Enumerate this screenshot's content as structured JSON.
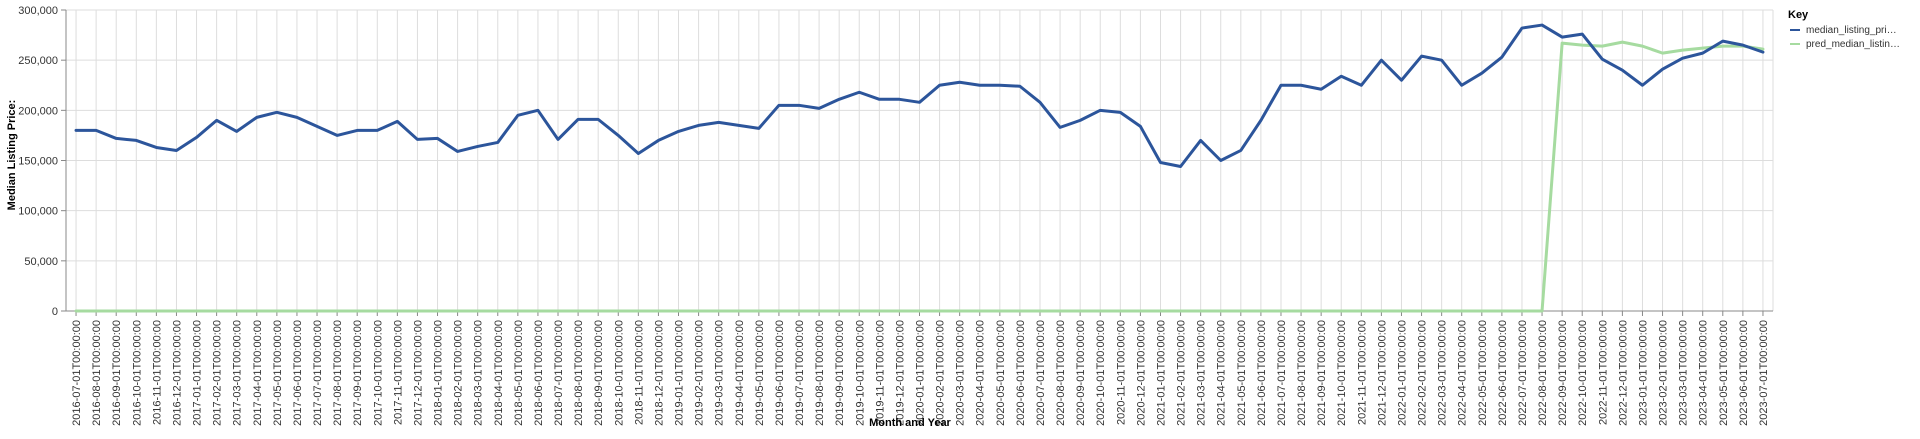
{
  "chart_data": {
    "type": "line",
    "xlabel": "Month and Year",
    "ylabel": "Median Listing Price:",
    "ylim": [
      0,
      300000
    ],
    "yticks": [
      "0",
      "50,000",
      "100,000",
      "150,000",
      "200,000",
      "250,000",
      "300,000"
    ],
    "grid": true,
    "legend": {
      "title": "Key",
      "placement": "top-right"
    },
    "x": [
      "2016-07-01T00:00:00",
      "2016-08-01T00:00:00",
      "2016-09-01T00:00:00",
      "2016-10-01T00:00:00",
      "2016-11-01T00:00:00",
      "2016-12-01T00:00:00",
      "2017-01-01T00:00:00",
      "2017-02-01T00:00:00",
      "2017-03-01T00:00:00",
      "2017-04-01T00:00:00",
      "2017-05-01T00:00:00",
      "2017-06-01T00:00:00",
      "2017-07-01T00:00:00",
      "2017-08-01T00:00:00",
      "2017-09-01T00:00:00",
      "2017-10-01T00:00:00",
      "2017-11-01T00:00:00",
      "2017-12-01T00:00:00",
      "2018-01-01T00:00:00",
      "2018-02-01T00:00:00",
      "2018-03-01T00:00:00",
      "2018-04-01T00:00:00",
      "2018-05-01T00:00:00",
      "2018-06-01T00:00:00",
      "2018-07-01T00:00:00",
      "2018-08-01T00:00:00",
      "2018-09-01T00:00:00",
      "2018-10-01T00:00:00",
      "2018-11-01T00:00:00",
      "2018-12-01T00:00:00",
      "2019-01-01T00:00:00",
      "2019-02-01T00:00:00",
      "2019-03-01T00:00:00",
      "2019-04-01T00:00:00",
      "2019-05-01T00:00:00",
      "2019-06-01T00:00:00",
      "2019-07-01T00:00:00",
      "2019-08-01T00:00:00",
      "2019-09-01T00:00:00",
      "2019-10-01T00:00:00",
      "2019-11-01T00:00:00",
      "2019-12-01T00:00:00",
      "2020-01-01T00:00:00",
      "2020-02-01T00:00:00",
      "2020-03-01T00:00:00",
      "2020-04-01T00:00:00",
      "2020-05-01T00:00:00",
      "2020-06-01T00:00:00",
      "2020-07-01T00:00:00",
      "2020-08-01T00:00:00",
      "2020-09-01T00:00:00",
      "2020-10-01T00:00:00",
      "2020-11-01T00:00:00",
      "2020-12-01T00:00:00",
      "2021-01-01T00:00:00",
      "2021-02-01T00:00:00",
      "2021-03-01T00:00:00",
      "2021-04-01T00:00:00",
      "2021-05-01T00:00:00",
      "2021-06-01T00:00:00",
      "2021-07-01T00:00:00",
      "2021-08-01T00:00:00",
      "2021-09-01T00:00:00",
      "2021-10-01T00:00:00",
      "2021-11-01T00:00:00",
      "2021-12-01T00:00:00",
      "2022-01-01T00:00:00",
      "2022-02-01T00:00:00",
      "2022-03-01T00:00:00",
      "2022-04-01T00:00:00",
      "2022-05-01T00:00:00",
      "2022-06-01T00:00:00",
      "2022-07-01T00:00:00",
      "2022-08-01T00:00:00",
      "2022-09-01T00:00:00",
      "2022-10-01T00:00:00",
      "2022-11-01T00:00:00",
      "2022-12-01T00:00:00",
      "2023-01-01T00:00:00",
      "2023-02-01T00:00:00",
      "2023-03-01T00:00:00",
      "2023-04-01T00:00:00",
      "2023-05-01T00:00:00",
      "2023-06-01T00:00:00",
      "2023-07-01T00:00:00"
    ],
    "series": [
      {
        "name": "median_listing_pri…",
        "color": "#2c559b",
        "values": [
          180000,
          180000,
          172000,
          170000,
          163000,
          160000,
          173000,
          190000,
          179000,
          193000,
          198000,
          193000,
          184000,
          175000,
          180000,
          180000,
          189000,
          171000,
          172000,
          159000,
          164000,
          168000,
          195000,
          200000,
          171000,
          191000,
          191000,
          175000,
          157000,
          170000,
          179000,
          185000,
          188000,
          185000,
          182000,
          205000,
          205000,
          202000,
          211000,
          218000,
          211000,
          211000,
          208000,
          225000,
          228000,
          225000,
          225000,
          224000,
          208000,
          183000,
          190000,
          200000,
          198000,
          184000,
          148000,
          144000,
          170000,
          150000,
          160000,
          190000,
          225000,
          225000,
          221000,
          234000,
          225000,
          250000,
          230000,
          254000,
          250000,
          225000,
          237000,
          253000,
          282000,
          285000,
          273000,
          276000,
          251000,
          240000,
          225000,
          241000,
          252000,
          257000,
          269000,
          265000,
          258000
        ]
      },
      {
        "name": "pred_median_listin…",
        "color": "#a6dba0",
        "values": [
          0,
          0,
          0,
          0,
          0,
          0,
          0,
          0,
          0,
          0,
          0,
          0,
          0,
          0,
          0,
          0,
          0,
          0,
          0,
          0,
          0,
          0,
          0,
          0,
          0,
          0,
          0,
          0,
          0,
          0,
          0,
          0,
          0,
          0,
          0,
          0,
          0,
          0,
          0,
          0,
          0,
          0,
          0,
          0,
          0,
          0,
          0,
          0,
          0,
          0,
          0,
          0,
          0,
          0,
          0,
          0,
          0,
          0,
          0,
          0,
          0,
          0,
          0,
          0,
          0,
          0,
          0,
          0,
          0,
          0,
          0,
          0,
          0,
          0,
          267000,
          265000,
          264000,
          268000,
          264000,
          257000,
          260000,
          262000,
          264000,
          264000,
          261000
        ]
      }
    ]
  }
}
